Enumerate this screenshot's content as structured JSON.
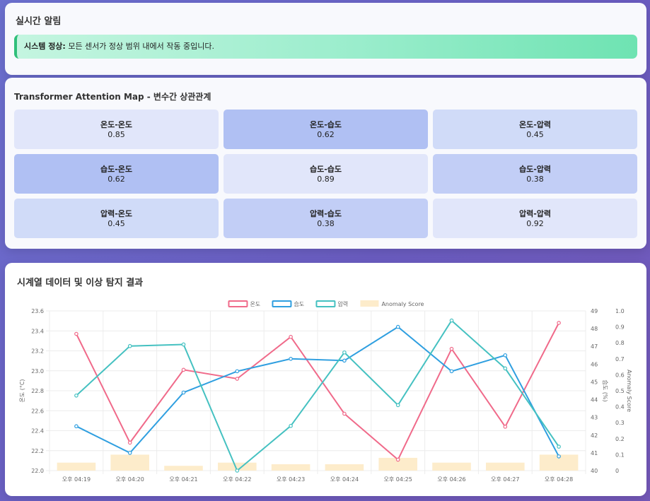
{
  "alert": {
    "title": "실시간 알림",
    "status_label": "시스템 정상:",
    "status_text": " 모든 센서가 정상 범위 내에서 작동 중입니다."
  },
  "attention": {
    "title": "Transformer Attention Map - 변수간 상관관계",
    "cells": [
      {
        "label": "온도-온도",
        "value": "0.85",
        "color": "#e1e6fa"
      },
      {
        "label": "온도-습도",
        "value": "0.62",
        "color": "#b0c0f3"
      },
      {
        "label": "온도-압력",
        "value": "0.45",
        "color": "#d0dbf8"
      },
      {
        "label": "습도-온도",
        "value": "0.62",
        "color": "#b0c0f3"
      },
      {
        "label": "습도-습도",
        "value": "0.89",
        "color": "#e1e6fa"
      },
      {
        "label": "습도-압력",
        "value": "0.38",
        "color": "#c2cef6"
      },
      {
        "label": "압력-온도",
        "value": "0.45",
        "color": "#d0dbf8"
      },
      {
        "label": "압력-습도",
        "value": "0.38",
        "color": "#c2cef6"
      },
      {
        "label": "압력-압력",
        "value": "0.92",
        "color": "#e1e6fa"
      }
    ]
  },
  "chart_section": {
    "title": "시계열 데이터 및 이상 탐지 결과"
  },
  "chart_data": {
    "type": "line",
    "categories": [
      "오후 04:19",
      "오후 04:20",
      "오후 04:21",
      "오후 04:22",
      "오후 04:23",
      "오후 04:24",
      "오후 04:25",
      "오후 04:26",
      "오후 04:27",
      "오후 04:28"
    ],
    "series": [
      {
        "name": "온도",
        "axis": "y",
        "color": "#f06a8a",
        "values": [
          23.37,
          22.28,
          23.01,
          22.92,
          23.34,
          22.57,
          22.11,
          23.22,
          22.44,
          23.48
        ]
      },
      {
        "name": "습도",
        "axis": "y1",
        "color": "#2f9fe0",
        "values": [
          42.5,
          41.0,
          44.4,
          45.6,
          46.3,
          46.2,
          48.1,
          45.6,
          46.5,
          40.8
        ]
      },
      {
        "name": "압력",
        "axis": "y2",
        "color": "#45c1c1",
        "values": [
          0.47,
          0.78,
          0.79,
          0.0,
          0.28,
          0.74,
          0.41,
          0.94,
          0.64,
          0.15
        ]
      },
      {
        "name": "Anomaly Score",
        "axis": "y2",
        "type": "bar",
        "color": "#fdeccb",
        "values": [
          0.05,
          0.1,
          0.03,
          0.05,
          0.04,
          0.04,
          0.08,
          0.05,
          0.05,
          0.1
        ]
      }
    ],
    "y": {
      "label": "온도 (°C)",
      "min": 22.0,
      "max": 23.6,
      "ticks": [
        "22.0",
        "22.2",
        "22.4",
        "22.6",
        "22.8",
        "23.0",
        "23.2",
        "23.4",
        "23.6"
      ]
    },
    "y1": {
      "label": "습도 (%)",
      "min": 40,
      "max": 49,
      "ticks": [
        "40",
        "41",
        "42",
        "43",
        "44",
        "45",
        "46",
        "47",
        "48",
        "49"
      ]
    },
    "y2": {
      "label": "Anomaly Score",
      "min": 0,
      "max": 1,
      "ticks": [
        "0",
        "0.1",
        "0.2",
        "0.3",
        "0.4",
        "0.5",
        "0.6",
        "0.7",
        "0.8",
        "0.9",
        "1.0"
      ]
    },
    "legend": "top",
    "grid": true
  }
}
